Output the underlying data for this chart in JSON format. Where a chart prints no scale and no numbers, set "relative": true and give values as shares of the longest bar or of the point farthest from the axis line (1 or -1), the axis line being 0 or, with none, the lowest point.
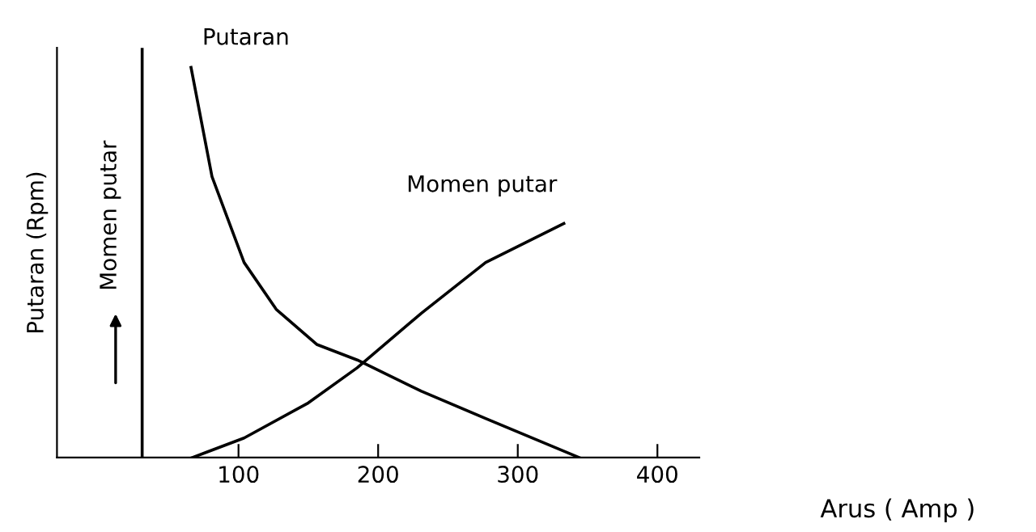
{
  "chart_data": {
    "type": "line",
    "relative": true,
    "xlabel": "Arus ( Amp )",
    "ylabel": "Putaran (Rpm)",
    "y2label": "Momen putar",
    "xlim": [
      -30,
      430
    ],
    "xticks": [
      100,
      200,
      300,
      400
    ],
    "tick_labels": "x",
    "grid": false,
    "legend": false,
    "marker": "none",
    "line_style": "solid",
    "ref_lines": [
      {
        "axis": "x",
        "value": 31,
        "color": "#000000",
        "line_style": "solid"
      }
    ],
    "series": [
      {
        "name": "Putaran",
        "color": "#000000",
        "x": [
          66,
          81,
          104,
          127,
          156,
          185,
          231,
          277,
          344
        ],
        "values": [
          1.0,
          0.72,
          0.5,
          0.38,
          0.29,
          0.25,
          0.17,
          0.1,
          0.0
        ]
      },
      {
        "name": "Momen putar",
        "color": "#000000",
        "x": [
          67,
          104,
          150,
          185,
          231,
          277,
          333
        ],
        "values": [
          0.0,
          0.05,
          0.14,
          0.23,
          0.37,
          0.5,
          0.6
        ]
      }
    ]
  }
}
